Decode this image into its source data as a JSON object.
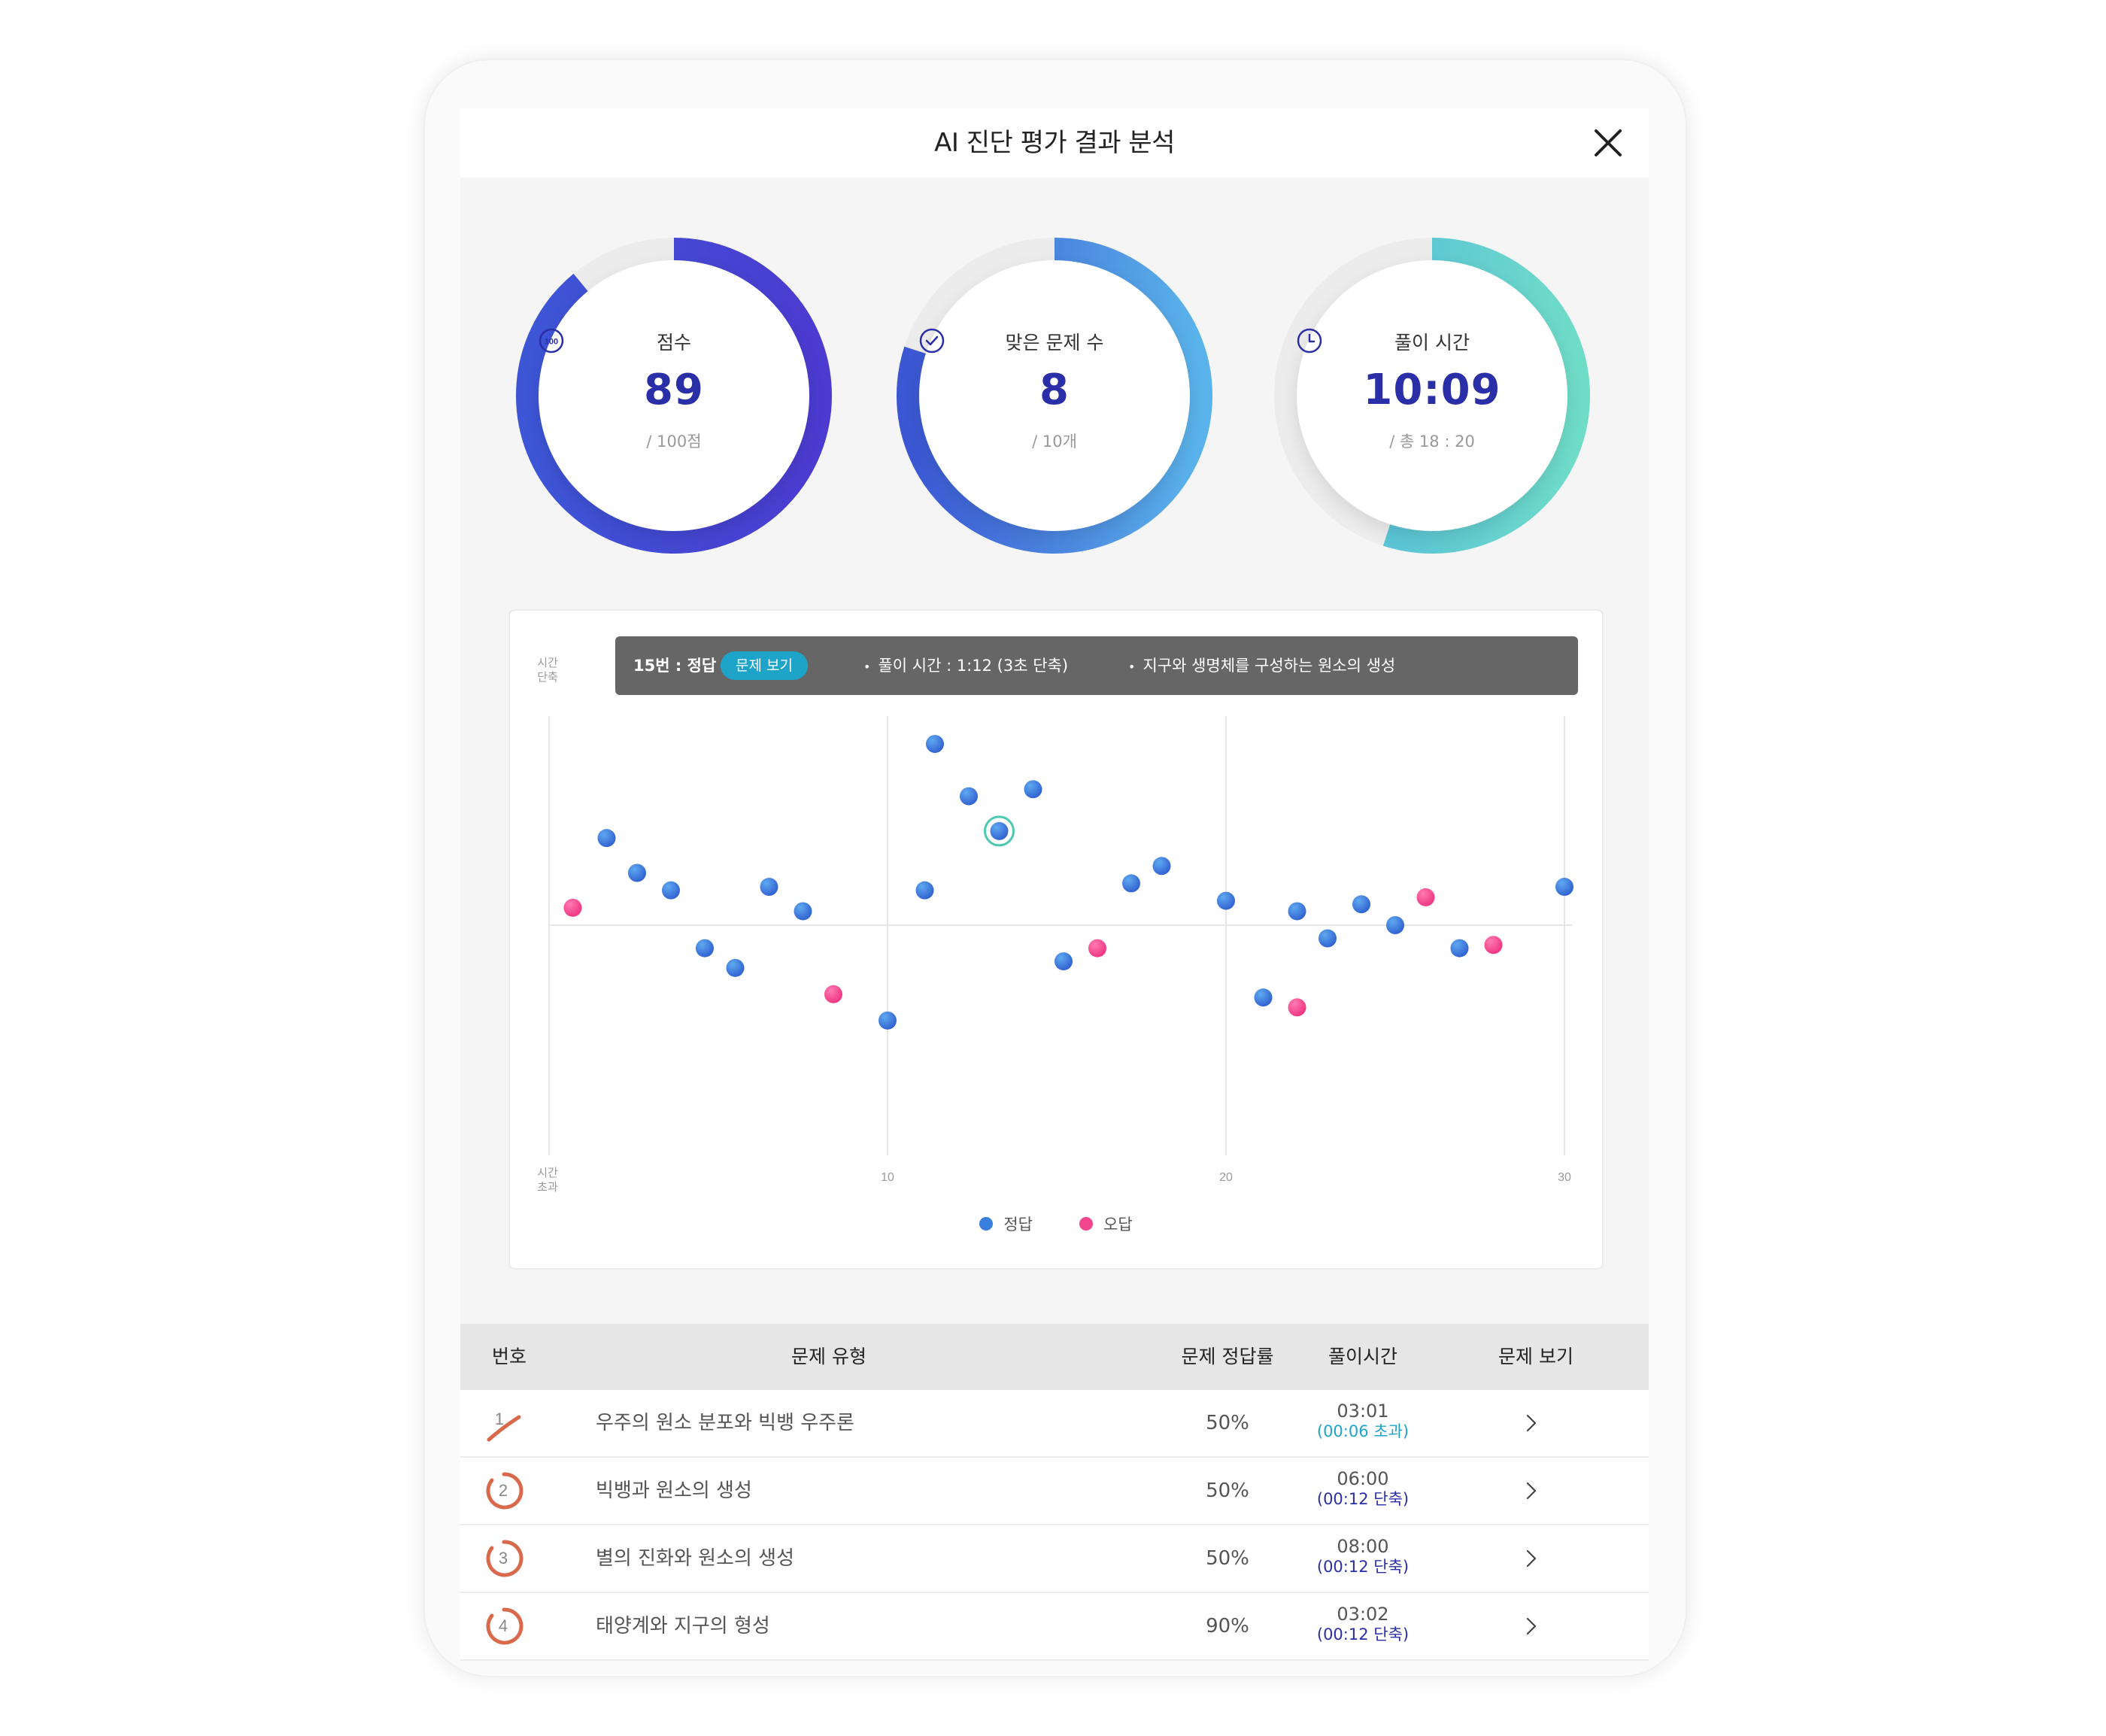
{
  "header": {
    "title": "AI 진단 평가 결과 분석",
    "close_icon": "close-icon"
  },
  "gauges": [
    {
      "icon_text": "100",
      "label": "점수",
      "value": "89",
      "sub": "/ 100점",
      "fraction": 0.89,
      "colors": [
        "#3d56d6",
        "#4b3bd0"
      ]
    },
    {
      "label": "맞은 문제 수",
      "value": "8",
      "sub": "/ 10개",
      "fraction": 0.8,
      "colors": [
        "#3b57d3",
        "#5ab3ea"
      ]
    },
    {
      "label": "풀이 시간",
      "value": "10:09",
      "sub": "/ 총 18 : 20",
      "fraction": 0.55,
      "colors": [
        "#4fb6dd",
        "#6fdcc8"
      ]
    }
  ],
  "chart": {
    "tooltip": {
      "question": "15번 : 정답",
      "button": "문제 보기",
      "time": "풀이 시간 : 1:12 (3초 단축)",
      "topic": "지구와 생명체를 구성하는 원소의 생성"
    },
    "y_top": [
      "시간",
      "단축"
    ],
    "y_bottom": [
      "시간",
      "초과"
    ],
    "legend": [
      {
        "label": "정답",
        "color": "#3a7fe0"
      },
      {
        "label": "오답",
        "color": "#f4458f"
      }
    ]
  },
  "chart_data": {
    "type": "scatter",
    "xlim": [
      0,
      30
    ],
    "ylim": [
      -7,
      6
    ],
    "x_ticks": [
      "10",
      "20",
      "30"
    ],
    "x_tick_values": [
      10,
      20,
      30
    ],
    "grid": true,
    "legend_position": "bottom-center",
    "series": [
      {
        "name": "정답",
        "color": "#3a7fe0",
        "points": [
          [
            1.7,
            2.5
          ],
          [
            2.6,
            1.5
          ],
          [
            3.6,
            1.0
          ],
          [
            4.6,
            -0.7
          ],
          [
            5.5,
            -1.3
          ],
          [
            6.5,
            1.1
          ],
          [
            7.5,
            0.4
          ],
          [
            10,
            -2.9
          ],
          [
            11.1,
            1.0
          ],
          [
            11.4,
            5.2
          ],
          [
            12.4,
            3.7
          ],
          [
            13.3,
            2.7
          ],
          [
            14.3,
            3.9
          ],
          [
            15.2,
            -1.1
          ],
          [
            17.2,
            1.2
          ],
          [
            18.1,
            1.7
          ],
          [
            20,
            0.7
          ],
          [
            21.1,
            -2.2
          ],
          [
            22.1,
            0.4
          ],
          [
            23,
            -0.4
          ],
          [
            24,
            0.6
          ],
          [
            25,
            0
          ],
          [
            26.9,
            -0.7
          ],
          [
            30,
            1.1
          ]
        ]
      },
      {
        "name": "오답",
        "color": "#f4458f",
        "points": [
          [
            0.7,
            0.5
          ],
          [
            8.4,
            -2.1
          ],
          [
            16.2,
            -0.7
          ],
          [
            22.1,
            -2.5
          ],
          [
            25.9,
            0.8
          ],
          [
            27.9,
            -0.6
          ]
        ]
      }
    ],
    "highlight": {
      "question": 15,
      "x": 13.3,
      "y": 2.7
    }
  },
  "table": {
    "headers": [
      "번호",
      "문제 유형",
      "문제 정답률",
      "풀이시간",
      "문제 보기"
    ],
    "rows": [
      {
        "no": "1",
        "mark": "wrong",
        "topic": "우주의 원소 분포와 빅뱅 우주론",
        "rate": "50%",
        "time": "03:01",
        "diff": "(00:06 초과)",
        "diff_type": "over"
      },
      {
        "no": "2",
        "mark": "correct",
        "topic": "빅뱅과 원소의 생성",
        "rate": "50%",
        "time": "06:00",
        "diff": "(00:12 단축)",
        "diff_type": "short"
      },
      {
        "no": "3",
        "mark": "correct",
        "topic": "별의 진화와 원소의 생성",
        "rate": "50%",
        "time": "08:00",
        "diff": "(00:12 단축)",
        "diff_type": "short"
      },
      {
        "no": "4",
        "mark": "correct",
        "topic": "태양계와 지구의 형성",
        "rate": "90%",
        "time": "03:02",
        "diff": "(00:12 단축)",
        "diff_type": "short"
      }
    ]
  }
}
